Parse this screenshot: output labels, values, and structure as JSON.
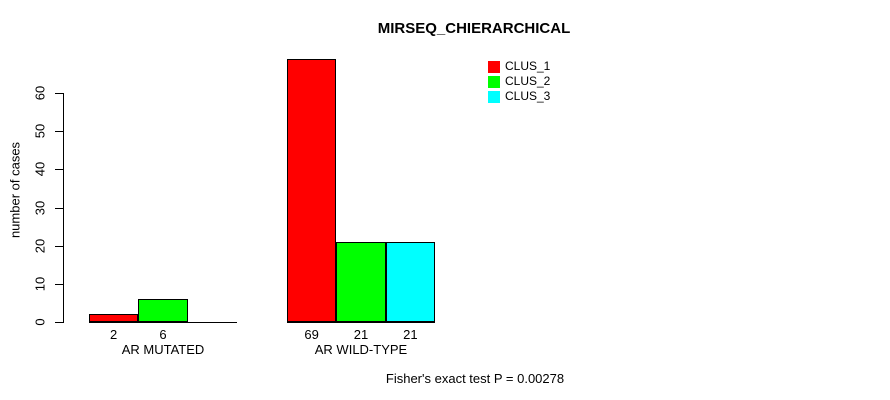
{
  "chart_data": {
    "type": "bar",
    "title": "MIRSEQ_CHIERARCHICAL",
    "ylabel": "number of cases",
    "xlabel": "",
    "ylim": [
      0,
      60
    ],
    "yticks": [
      0,
      10,
      20,
      30,
      40,
      50,
      60
    ],
    "grid": false,
    "legend_position": "top-right",
    "categories": [
      "AR MUTATED",
      "AR WILD-TYPE"
    ],
    "series": [
      {
        "name": "CLUS_1",
        "color": "#ff0000",
        "values": [
          2,
          69
        ]
      },
      {
        "name": "CLUS_2",
        "color": "#00ff00",
        "values": [
          6,
          21
        ]
      },
      {
        "name": "CLUS_3",
        "color": "#00ffff",
        "values": [
          0,
          21
        ]
      }
    ],
    "bar_labels": [
      [
        "2",
        "6",
        ""
      ],
      [
        "69",
        "21",
        "21"
      ]
    ],
    "annotation": "Fisher's exact test P = 0.00278"
  }
}
